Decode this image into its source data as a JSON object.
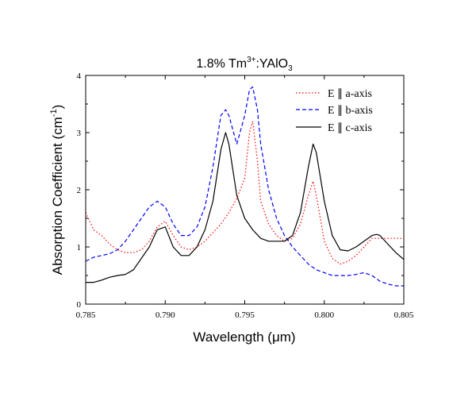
{
  "chart_data": {
    "type": "line",
    "title": {
      "main": "1.8% Tm",
      "sup": "3+",
      "mid": ":YAlO",
      "sub": "3"
    },
    "xlabel": "Wavelength (μm)",
    "ylabel": {
      "main": "Absorption Coefficient (cm",
      "sup": "-1",
      "end": ")"
    },
    "xlim": [
      0.785,
      0.805
    ],
    "ylim": [
      0,
      4
    ],
    "xticks": [
      "0.785",
      "0.790",
      "0.795",
      "0.800",
      "0.805"
    ],
    "yticks": [
      "0",
      "1",
      "2",
      "3",
      "4"
    ],
    "grid": false,
    "legend_position": "top-right",
    "series": [
      {
        "name": "E ∥ a-axis",
        "color": "#ff0000",
        "dash": "dotted",
        "x": [
          0.785,
          0.7855,
          0.786,
          0.7865,
          0.787,
          0.7875,
          0.788,
          0.7885,
          0.789,
          0.7895,
          0.79,
          0.7905,
          0.791,
          0.7915,
          0.792,
          0.7925,
          0.793,
          0.7935,
          0.794,
          0.7945,
          0.795,
          0.7953,
          0.7955,
          0.7958,
          0.796,
          0.7965,
          0.797,
          0.7975,
          0.798,
          0.7985,
          0.799,
          0.7993,
          0.7995,
          0.8,
          0.8005,
          0.801,
          0.8015,
          0.802,
          0.8025,
          0.803,
          0.8035,
          0.804,
          0.8045,
          0.805
        ],
        "y": [
          1.6,
          1.3,
          1.2,
          1.05,
          0.95,
          0.9,
          0.9,
          0.95,
          1.1,
          1.35,
          1.45,
          1.2,
          1.0,
          0.95,
          1.0,
          1.1,
          1.25,
          1.4,
          1.6,
          1.85,
          2.2,
          3.0,
          3.2,
          2.5,
          1.8,
          1.4,
          1.2,
          1.1,
          1.15,
          1.4,
          1.9,
          2.15,
          1.9,
          1.1,
          0.8,
          0.7,
          0.75,
          0.85,
          1.0,
          1.15,
          1.15,
          1.15,
          1.15,
          1.15
        ]
      },
      {
        "name": "E ∥ b-axis",
        "color": "#0000ff",
        "dash": "dashed",
        "x": [
          0.785,
          0.7855,
          0.786,
          0.7865,
          0.787,
          0.7875,
          0.788,
          0.7885,
          0.789,
          0.7895,
          0.79,
          0.7905,
          0.791,
          0.7915,
          0.792,
          0.7925,
          0.793,
          0.7935,
          0.7938,
          0.794,
          0.7945,
          0.795,
          0.7953,
          0.7955,
          0.7958,
          0.796,
          0.7965,
          0.797,
          0.7975,
          0.798,
          0.7985,
          0.799,
          0.7995,
          0.8,
          0.8005,
          0.801,
          0.8015,
          0.802,
          0.8025,
          0.803,
          0.8035,
          0.804,
          0.8045,
          0.805
        ],
        "y": [
          0.75,
          0.82,
          0.85,
          0.88,
          0.95,
          1.1,
          1.3,
          1.5,
          1.7,
          1.8,
          1.7,
          1.4,
          1.2,
          1.2,
          1.35,
          1.7,
          2.4,
          3.3,
          3.4,
          3.3,
          2.8,
          3.3,
          3.75,
          3.8,
          3.4,
          2.8,
          2.0,
          1.5,
          1.2,
          1.0,
          0.85,
          0.7,
          0.6,
          0.55,
          0.5,
          0.5,
          0.5,
          0.52,
          0.55,
          0.5,
          0.4,
          0.35,
          0.32,
          0.32
        ]
      },
      {
        "name": "E ∥ c-axis",
        "color": "#000000",
        "dash": "solid",
        "x": [
          0.785,
          0.7855,
          0.786,
          0.7865,
          0.787,
          0.7875,
          0.788,
          0.7885,
          0.789,
          0.7895,
          0.79,
          0.7905,
          0.791,
          0.7915,
          0.792,
          0.7925,
          0.793,
          0.7935,
          0.7938,
          0.794,
          0.7945,
          0.795,
          0.7955,
          0.796,
          0.7965,
          0.797,
          0.7975,
          0.798,
          0.7985,
          0.799,
          0.7993,
          0.7995,
          0.8,
          0.8005,
          0.801,
          0.8015,
          0.802,
          0.8025,
          0.803,
          0.8033,
          0.8035,
          0.804,
          0.8045,
          0.805
        ],
        "y": [
          0.38,
          0.38,
          0.42,
          0.47,
          0.5,
          0.52,
          0.6,
          0.8,
          1.0,
          1.3,
          1.35,
          1.0,
          0.85,
          0.85,
          1.0,
          1.3,
          1.8,
          2.7,
          3.0,
          2.8,
          1.9,
          1.5,
          1.3,
          1.15,
          1.1,
          1.1,
          1.1,
          1.2,
          1.6,
          2.4,
          2.8,
          2.65,
          1.8,
          1.2,
          0.95,
          0.93,
          1.0,
          1.1,
          1.2,
          1.22,
          1.2,
          1.05,
          0.9,
          0.78
        ]
      }
    ]
  }
}
